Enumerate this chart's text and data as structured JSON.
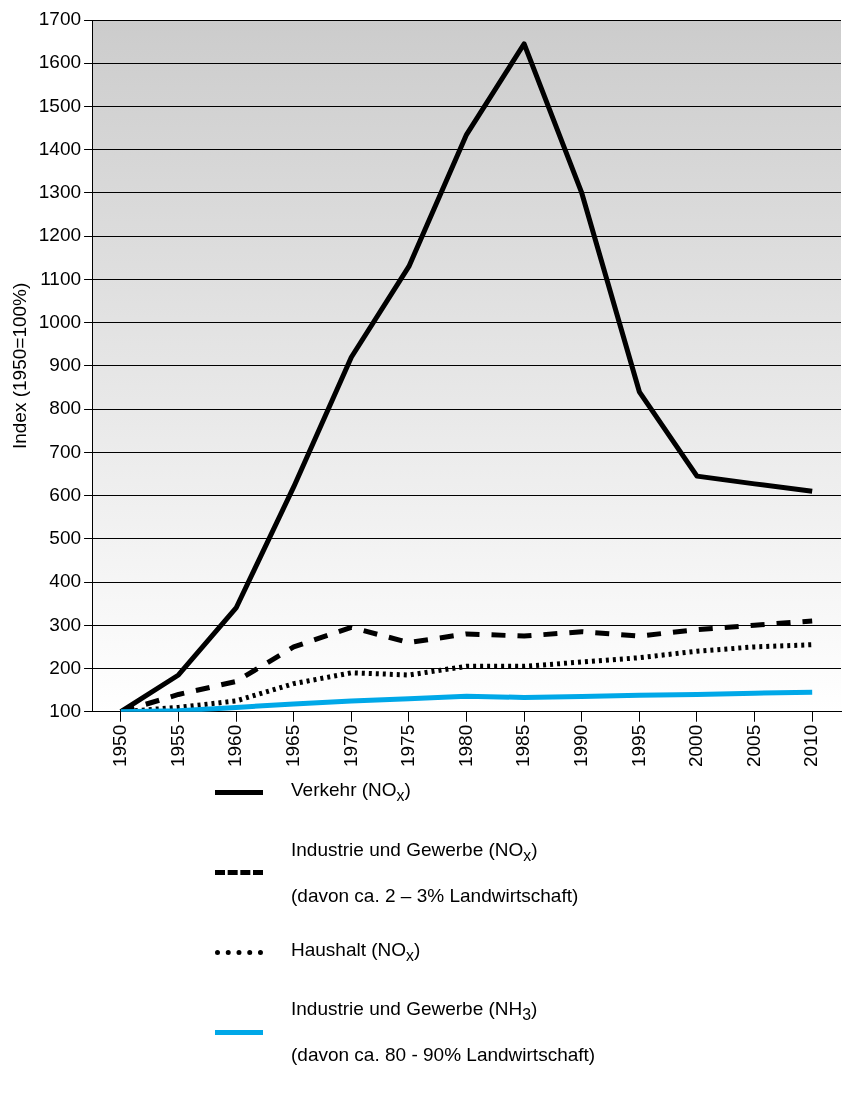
{
  "chart_data": {
    "type": "line",
    "ylabel": "Index (1950=100%)",
    "categories": [
      "1950",
      "1955",
      "1960",
      "1965",
      "1970",
      "1975",
      "1980",
      "1985",
      "1990",
      "1995",
      "2000",
      "2005",
      "2010"
    ],
    "ylim": [
      100,
      1700
    ],
    "yticks": [
      100,
      200,
      300,
      400,
      500,
      600,
      700,
      800,
      900,
      1000,
      1100,
      1200,
      1300,
      1400,
      1500,
      1600,
      1700
    ],
    "grid": "y",
    "legend": "bottom",
    "marker": "none",
    "series": [
      {
        "name": "Verkehr  (NO$_{x}$)",
        "color": "#000000",
        "line_style": "solid",
        "values": [
          100,
          185,
          340,
          620,
          920,
          1130,
          1435,
          1645,
          1300,
          840,
          645,
          627,
          610
        ]
      },
      {
        "name": "Industrie und Gewerbe (NO$_{x}$)\n(davon ca. 2 – 3% Landwirtschaft)",
        "color": "#000000",
        "line_style": "dashed",
        "values": [
          100,
          140,
          170,
          250,
          295,
          260,
          280,
          275,
          285,
          275,
          290,
          300,
          310
        ]
      },
      {
        "name": "Haushalt (NO$_{x}$)",
        "color": "#000000",
        "line_style": "dotted",
        "values": [
          100,
          110,
          125,
          165,
          190,
          185,
          205,
          205,
          215,
          225,
          240,
          250,
          255
        ]
      },
      {
        "name": "Industrie und Gewerbe (NH$_{3}$)\n(davon ca. 80 - 90% Landwirtschaft)",
        "color": "#00a8e8",
        "line_style": "solid",
        "values": [
          100,
          102,
          110,
          118,
          125,
          130,
          136,
          133,
          135,
          138,
          140,
          143,
          145
        ]
      }
    ]
  }
}
